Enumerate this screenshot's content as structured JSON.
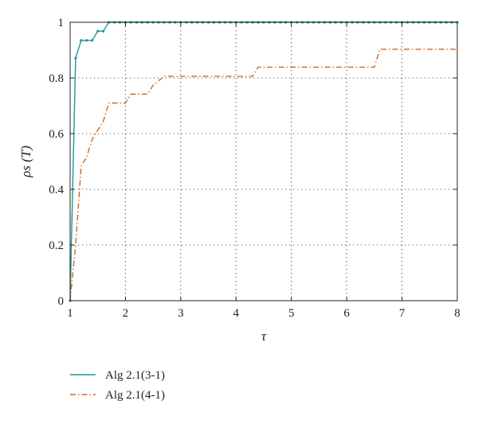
{
  "chart_data": {
    "type": "line",
    "xlabel": "τ",
    "ylabel": "ρs (T)",
    "xlim": [
      1,
      8
    ],
    "ylim": [
      0,
      1
    ],
    "xticks": [
      "1",
      "2",
      "3",
      "4",
      "5",
      "6",
      "7",
      "8"
    ],
    "yticks": [
      "0",
      "0.2",
      "0.4",
      "0.6",
      "0.8",
      "1"
    ],
    "grid": true,
    "legend_position": "below",
    "series": [
      {
        "name": "Alg 2.1(3-1)",
        "color": "#1a9a96",
        "style": "solid",
        "markers": true,
        "x": [
          1.0,
          1.1,
          1.2,
          1.3,
          1.4,
          1.5,
          1.6,
          1.7,
          8.0
        ],
        "y": [
          0.0,
          0.871,
          0.935,
          0.935,
          0.935,
          0.968,
          0.968,
          1.0,
          1.0
        ]
      },
      {
        "name": "Alg 2.1(4-1)",
        "color": "#d2691e",
        "style": "dashdot",
        "markers": false,
        "x": [
          1.0,
          1.1,
          1.2,
          1.3,
          1.4,
          1.5,
          1.6,
          1.7,
          1.8,
          2.0,
          2.1,
          2.4,
          2.5,
          2.7,
          4.3,
          4.4,
          6.5,
          6.6,
          8.0
        ],
        "y": [
          0.0,
          0.2,
          0.484,
          0.516,
          0.58,
          0.613,
          0.645,
          0.71,
          0.71,
          0.71,
          0.742,
          0.742,
          0.774,
          0.806,
          0.806,
          0.839,
          0.839,
          0.903,
          0.903
        ]
      }
    ]
  }
}
